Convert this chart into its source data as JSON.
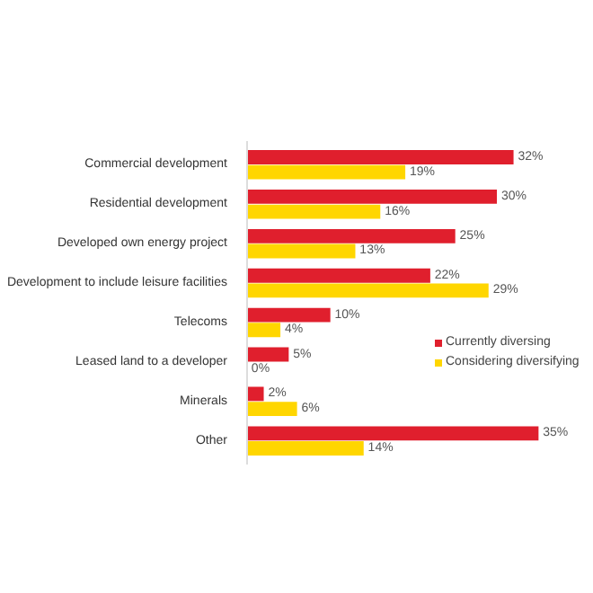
{
  "chart_data": {
    "type": "bar",
    "orientation": "horizontal",
    "categories": [
      "Commercial development",
      "Residential development",
      "Developed own energy project",
      "Development to include leisure facilities",
      "Telecoms",
      "Leased land to a developer",
      "Minerals",
      "Other"
    ],
    "series": [
      {
        "name": "Currently diversing",
        "color": "#e01f2d",
        "values": [
          32,
          30,
          25,
          22,
          10,
          5,
          2,
          35
        ],
        "value_labels": [
          "32%",
          "30%",
          "25%",
          "22%",
          "10%",
          "5%",
          "2%",
          "35%"
        ]
      },
      {
        "name": "Considering diversifying",
        "color": "#ffd600",
        "values": [
          19,
          16,
          13,
          29,
          4,
          0,
          6,
          14
        ],
        "value_labels": [
          "19%",
          "16%",
          "13%",
          "29%",
          "4%",
          "0%",
          "6%",
          "14%"
        ]
      }
    ],
    "legend": "right",
    "grid": false
  }
}
